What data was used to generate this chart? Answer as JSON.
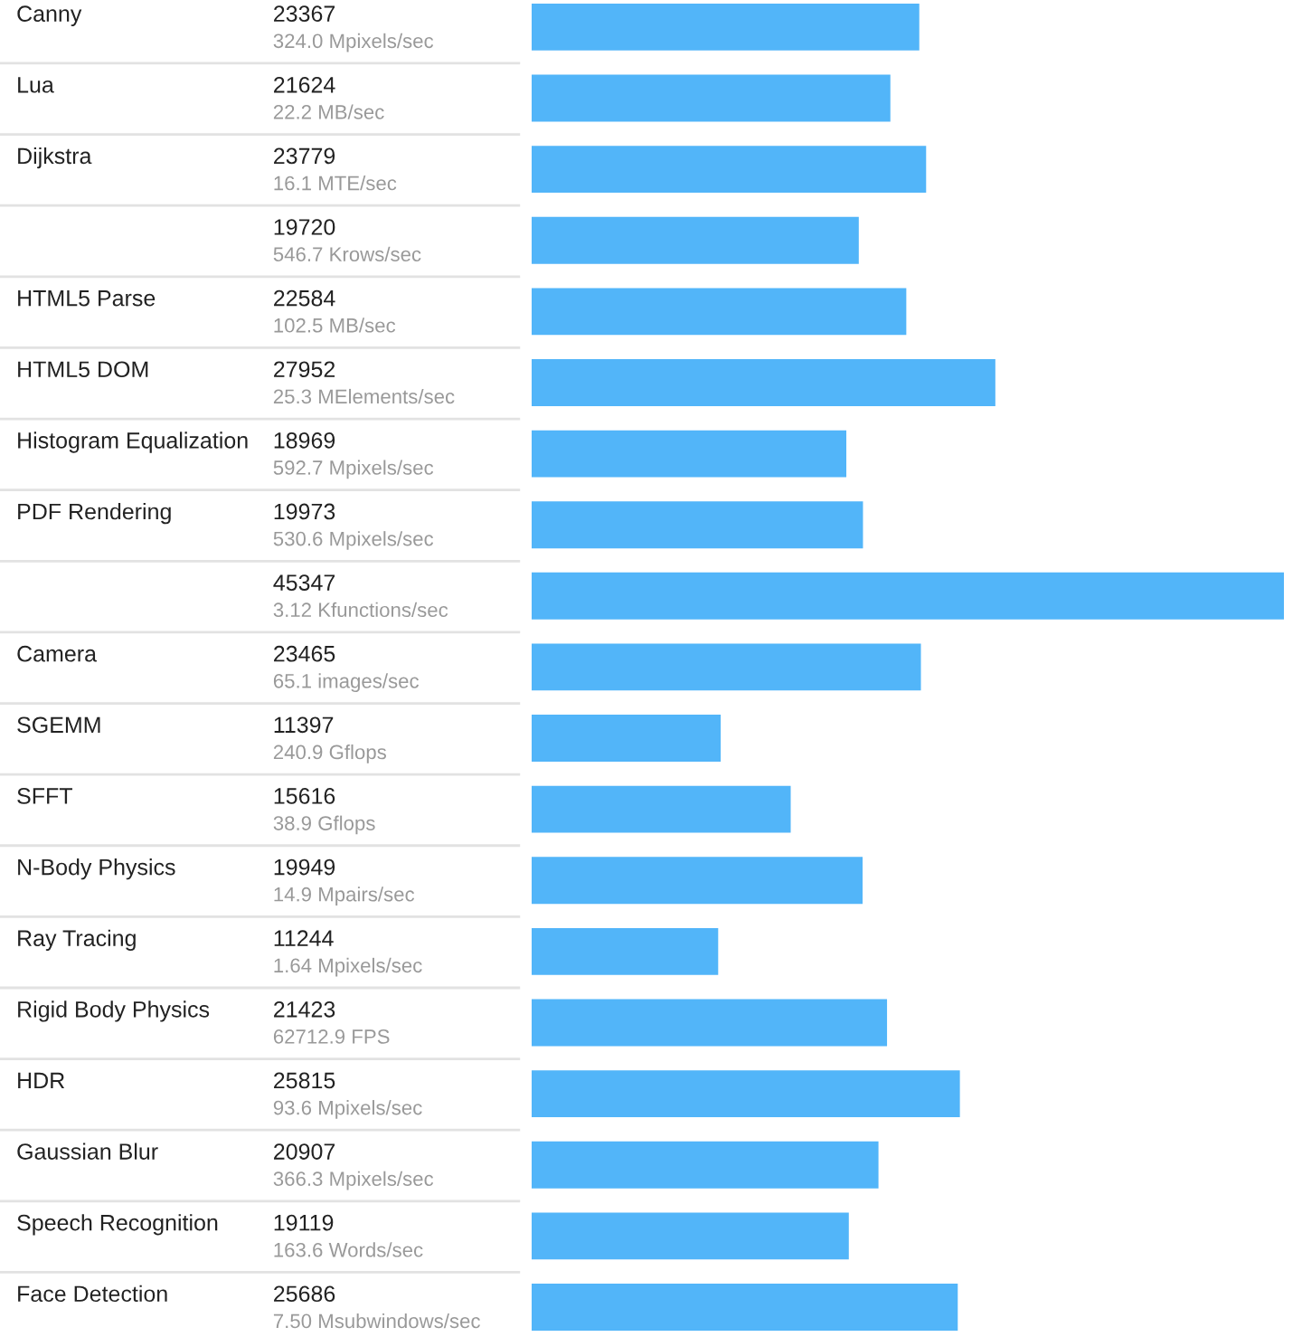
{
  "chart_data": {
    "type": "bar",
    "orientation": "horizontal",
    "color": "#52b5f9",
    "data_labels": true,
    "categories": [
      "Canny",
      "Lua",
      "Dijkstra",
      null,
      "HTML5 Parse",
      "HTML5 DOM",
      "Histogram Equalization",
      "PDF Rendering",
      null,
      "Camera",
      "SGEMM",
      "SFFT",
      "N-Body Physics",
      "Ray Tracing",
      "Rigid Body Physics",
      "HDR",
      "Gaussian Blur",
      "Speech Recognition",
      "Face Detection"
    ],
    "values": [
      23367,
      21624,
      23779,
      19720,
      22584,
      27952,
      18969,
      19973,
      45347,
      23465,
      11397,
      15616,
      19949,
      11244,
      21423,
      25815,
      20907,
      19119,
      25686
    ],
    "annotations": [
      "324.0 Mpixels/sec",
      "22.2 MB/sec",
      "16.1 MTE/sec",
      "546.7 Krows/sec",
      "102.5 MB/sec",
      "25.3 MElements/sec",
      "592.7 Mpixels/sec",
      "530.6 Mpixels/sec",
      "3.12 Kfunctions/sec",
      "65.1 images/sec",
      "240.9 Gflops",
      "38.9 Gflops",
      "14.9 Mpairs/sec",
      "1.64 Mpixels/sec",
      "62712.9 FPS",
      "93.6 Mpixels/sec",
      "366.3 Mpixels/sec",
      "163.6 Words/sec",
      "7.50 Msubwindows/sec"
    ]
  }
}
